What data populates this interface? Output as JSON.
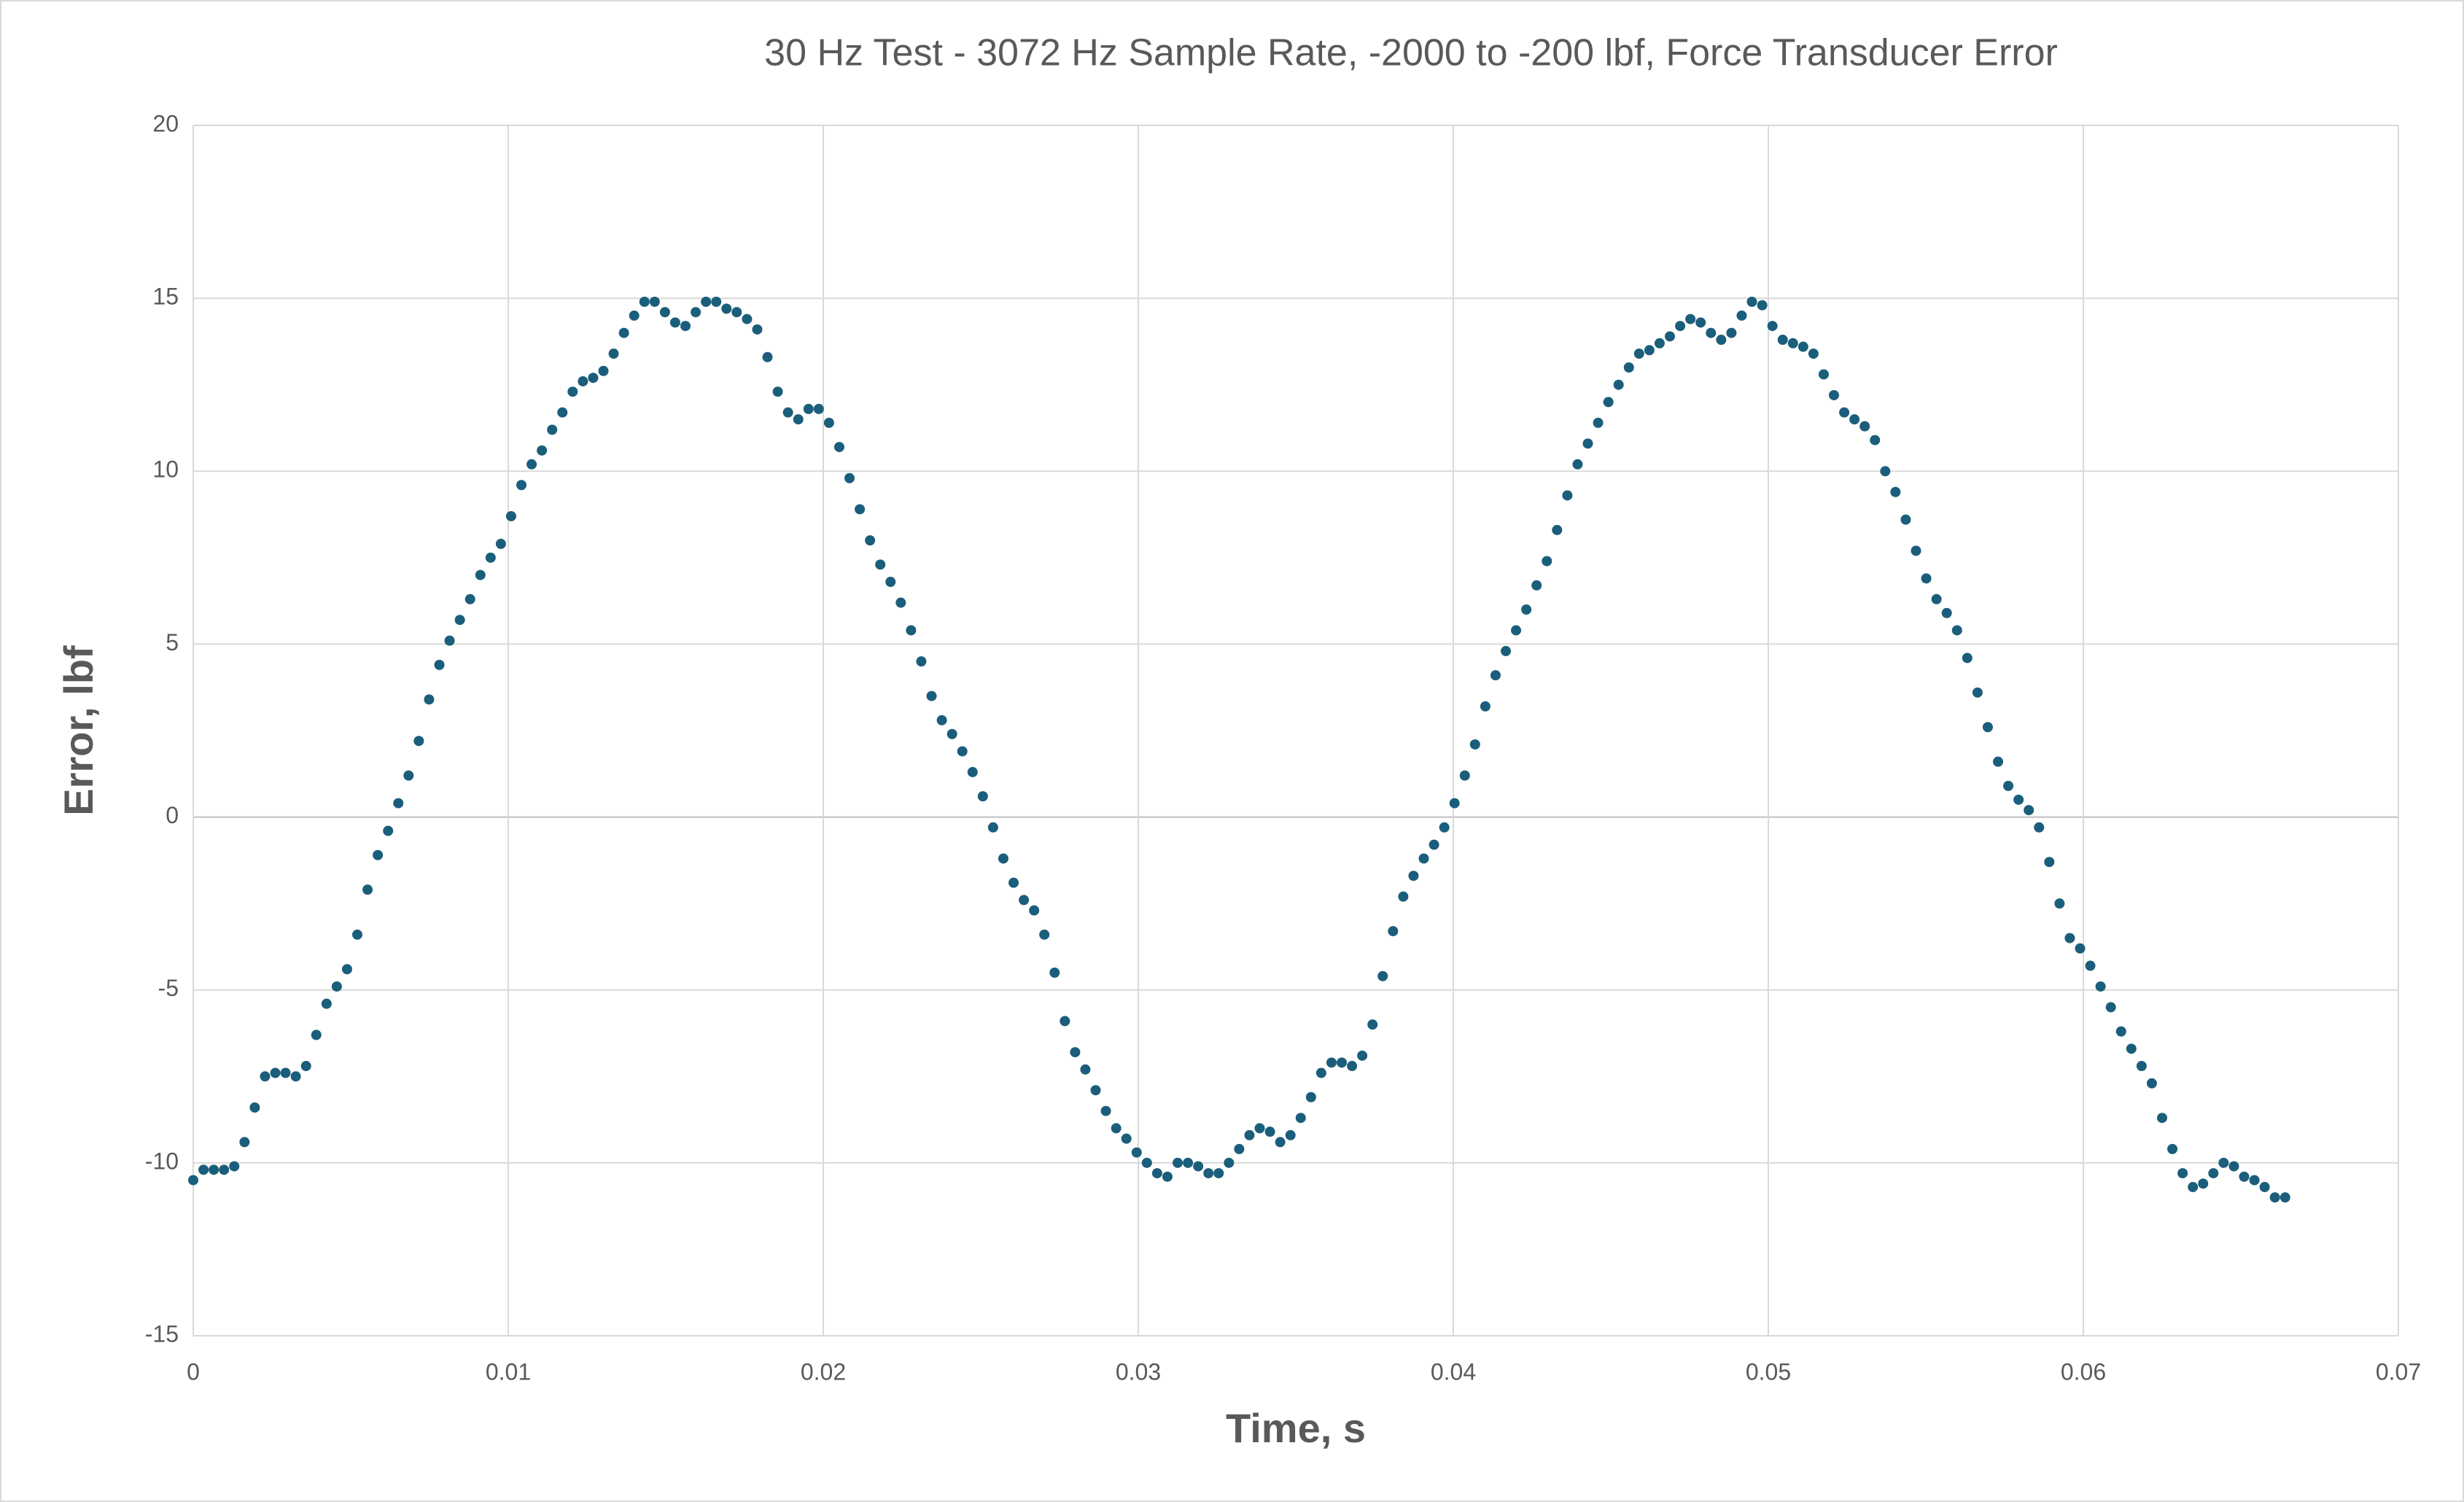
{
  "chart_data": {
    "type": "scatter",
    "title": "30 Hz Test - 3072 Hz Sample Rate, -2000 to -200 lbf, Force Transducer Error",
    "x_label": "Time, s",
    "y_label": "Error, lbf",
    "xlim": [
      0,
      0.07
    ],
    "xticks": [
      0,
      0.01,
      0.02,
      0.03,
      0.04,
      0.05,
      0.06,
      0.07
    ],
    "ylim": [
      -15,
      20
    ],
    "yticks": [
      -15,
      -10,
      -5,
      0,
      5,
      10,
      15,
      20
    ],
    "grid": true,
    "series": [
      {
        "color": "#1b5e7b",
        "x": [
          0,
          0.000326,
          0.000651,
          0.000977,
          0.001302,
          0.001628,
          0.001953,
          0.002279,
          0.002604,
          0.00293,
          0.003255,
          0.003581,
          0.003906,
          0.004232,
          0.004557,
          0.004883,
          0.005208,
          0.005534,
          0.005859,
          0.006185,
          0.00651,
          0.006836,
          0.007161,
          0.007487,
          0.007813,
          0.008138,
          0.008464,
          0.008789,
          0.009115,
          0.00944,
          0.009766,
          0.010091,
          0.010417,
          0.010742,
          0.011068,
          0.011393,
          0.011719,
          0.012044,
          0.01237,
          0.012695,
          0.013021,
          0.013346,
          0.013672,
          0.013997,
          0.014323,
          0.014648,
          0.014974,
          0.015299,
          0.015625,
          0.015951,
          0.016276,
          0.016602,
          0.016927,
          0.017253,
          0.017578,
          0.017904,
          0.018229,
          0.018555,
          0.01888,
          0.019206,
          0.019531,
          0.019857,
          0.020182,
          0.020508,
          0.020833,
          0.021159,
          0.021484,
          0.02181,
          0.022135,
          0.022461,
          0.022786,
          0.023112,
          0.023438,
          0.023763,
          0.024089,
          0.024414,
          0.02474,
          0.025065,
          0.025391,
          0.025716,
          0.026042,
          0.026367,
          0.026693,
          0.027018,
          0.027344,
          0.027669,
          0.027995,
          0.02832,
          0.028646,
          0.028971,
          0.029297,
          0.029622,
          0.029948,
          0.030273,
          0.030599,
          0.030924,
          0.03125,
          0.031576,
          0.031901,
          0.032227,
          0.032552,
          0.032878,
          0.033203,
          0.033529,
          0.033854,
          0.03418,
          0.034505,
          0.034831,
          0.035156,
          0.035482,
          0.035807,
          0.036133,
          0.036458,
          0.036784,
          0.037109,
          0.037435,
          0.03776,
          0.038086,
          0.038411,
          0.038737,
          0.039063,
          0.039388,
          0.039714,
          0.040039,
          0.040365,
          0.04069,
          0.041016,
          0.041341,
          0.041667,
          0.041992,
          0.042318,
          0.042643,
          0.042969,
          0.043294,
          0.04362,
          0.043945,
          0.044271,
          0.044596,
          0.044922,
          0.045247,
          0.045573,
          0.045898,
          0.046224,
          0.046549,
          0.046875,
          0.047201,
          0.047526,
          0.047852,
          0.048177,
          0.048503,
          0.048828,
          0.049154,
          0.049479,
          0.049805,
          0.05013,
          0.050456,
          0.050781,
          0.051107,
          0.051432,
          0.051758,
          0.052083,
          0.052409,
          0.052734,
          0.05306,
          0.053385,
          0.053711,
          0.054036,
          0.054362,
          0.054688,
          0.055013,
          0.055339,
          0.055664,
          0.05599,
          0.056315,
          0.056641,
          0.056966,
          0.057292,
          0.057617,
          0.057943,
          0.058268,
          0.058594,
          0.058919,
          0.059245,
          0.05957,
          0.059896,
          0.060221,
          0.060547,
          0.060872,
          0.061198,
          0.061523,
          0.061849,
          0.062174,
          0.0625,
          0.062826,
          0.063151,
          0.063477,
          0.063802,
          0.064128,
          0.064453,
          0.064779,
          0.065104,
          0.06543,
          0.065755,
          0.066081,
          0.066406
        ],
        "values": [
          -10.5,
          -10.2,
          -10.2,
          -10.2,
          -10.1,
          -9.4,
          -8.4,
          -7.5,
          -7.4,
          -7.4,
          -7.5,
          -7.2,
          -6.3,
          -5.4,
          -4.9,
          -4.4,
          -3.4,
          -2.1,
          -1.1,
          -0.4,
          0.4,
          1.2,
          2.2,
          3.4,
          4.4,
          5.1,
          5.7,
          6.3,
          7.0,
          7.5,
          7.9,
          8.7,
          9.6,
          10.2,
          10.6,
          11.2,
          11.7,
          12.3,
          12.6,
          12.7,
          12.9,
          13.4,
          14.0,
          14.5,
          14.9,
          14.9,
          14.6,
          14.3,
          14.2,
          14.6,
          14.9,
          14.9,
          14.7,
          14.6,
          14.4,
          14.1,
          13.3,
          12.3,
          11.7,
          11.5,
          11.8,
          11.8,
          11.4,
          10.7,
          9.8,
          8.9,
          8.0,
          7.3,
          6.8,
          6.2,
          5.4,
          4.5,
          3.5,
          2.8,
          2.4,
          1.9,
          1.3,
          0.6,
          -0.3,
          -1.2,
          -1.9,
          -2.4,
          -2.7,
          -3.4,
          -4.5,
          -5.9,
          -6.8,
          -7.3,
          -7.9,
          -8.5,
          -9.0,
          -9.3,
          -9.7,
          -10.0,
          -10.3,
          -10.4,
          -10.0,
          -10.0,
          -10.1,
          -10.3,
          -10.3,
          -10.0,
          -9.6,
          -9.2,
          -9.0,
          -9.1,
          -9.4,
          -9.2,
          -8.7,
          -8.1,
          -7.4,
          -7.1,
          -7.1,
          -7.2,
          -6.9,
          -6.0,
          -4.6,
          -3.3,
          -2.3,
          -1.7,
          -1.2,
          -0.8,
          -0.3,
          0.4,
          1.2,
          2.1,
          3.2,
          4.1,
          4.8,
          5.4,
          6.0,
          6.7,
          7.4,
          8.3,
          9.3,
          10.2,
          10.8,
          11.4,
          12.0,
          12.5,
          13.0,
          13.4,
          13.5,
          13.7,
          13.9,
          14.2,
          14.4,
          14.3,
          14.0,
          13.8,
          14.0,
          14.5,
          14.9,
          14.8,
          14.2,
          13.8,
          13.7,
          13.6,
          13.4,
          12.8,
          12.2,
          11.7,
          11.5,
          11.3,
          10.9,
          10.0,
          9.4,
          8.6,
          7.7,
          6.9,
          6.3,
          5.9,
          5.4,
          4.6,
          3.6,
          2.6,
          1.6,
          0.9,
          0.5,
          0.2,
          -0.3,
          -1.3,
          -2.5,
          -3.5,
          -3.8,
          -4.3,
          -4.9,
          -5.5,
          -6.2,
          -6.7,
          -7.2,
          -7.7,
          -8.7,
          -9.6,
          -10.3,
          -10.7,
          -10.6,
          -10.3,
          -10.0,
          -10.1,
          -10.4,
          -10.5,
          -10.7,
          -11.0,
          -11.0
        ]
      }
    ]
  }
}
